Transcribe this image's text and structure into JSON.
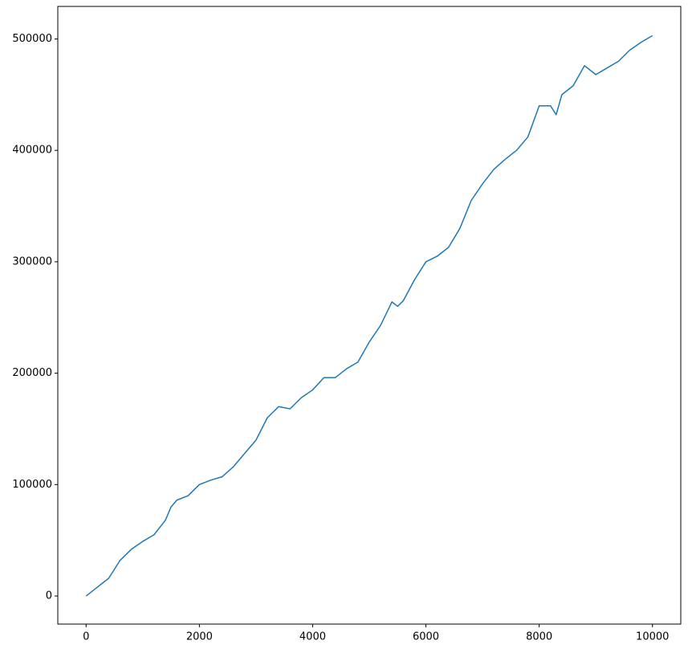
{
  "chart_data": {
    "type": "line",
    "x": [
      0,
      200,
      400,
      600,
      800,
      1000,
      1200,
      1400,
      1500,
      1600,
      1800,
      2000,
      2200,
      2400,
      2600,
      2800,
      3000,
      3200,
      3400,
      3600,
      3800,
      4000,
      4200,
      4400,
      4600,
      4800,
      5000,
      5200,
      5400,
      5500,
      5600,
      5800,
      6000,
      6200,
      6400,
      6600,
      6800,
      7000,
      7200,
      7400,
      7600,
      7800,
      8000,
      8200,
      8300,
      8400,
      8600,
      8800,
      9000,
      9200,
      9400,
      9600,
      9800,
      10000
    ],
    "series": [
      {
        "color": "#1f77b4",
        "values": [
          0,
          8000,
          16000,
          32000,
          42000,
          49000,
          55000,
          68000,
          80000,
          86000,
          90000,
          100000,
          104000,
          107000,
          116000,
          128000,
          140000,
          160000,
          170000,
          168000,
          178000,
          185000,
          196000,
          196000,
          204000,
          210000,
          228000,
          243000,
          264000,
          260000,
          265000,
          284000,
          300000,
          305000,
          313000,
          330000,
          355000,
          370000,
          383000,
          392000,
          400000,
          412000,
          440000,
          440000,
          432000,
          450000,
          458000,
          476000,
          468000,
          474000,
          480000,
          490000,
          497000,
          503000
        ]
      }
    ],
    "xlim": [
      -500,
      10500
    ],
    "xticks": [
      0,
      2000,
      4000,
      6000,
      8000,
      10000
    ],
    "ylim": [
      -25200,
      529200
    ],
    "yticks": [
      0,
      100000,
      200000,
      300000,
      400000,
      500000
    ],
    "grid": false
  }
}
